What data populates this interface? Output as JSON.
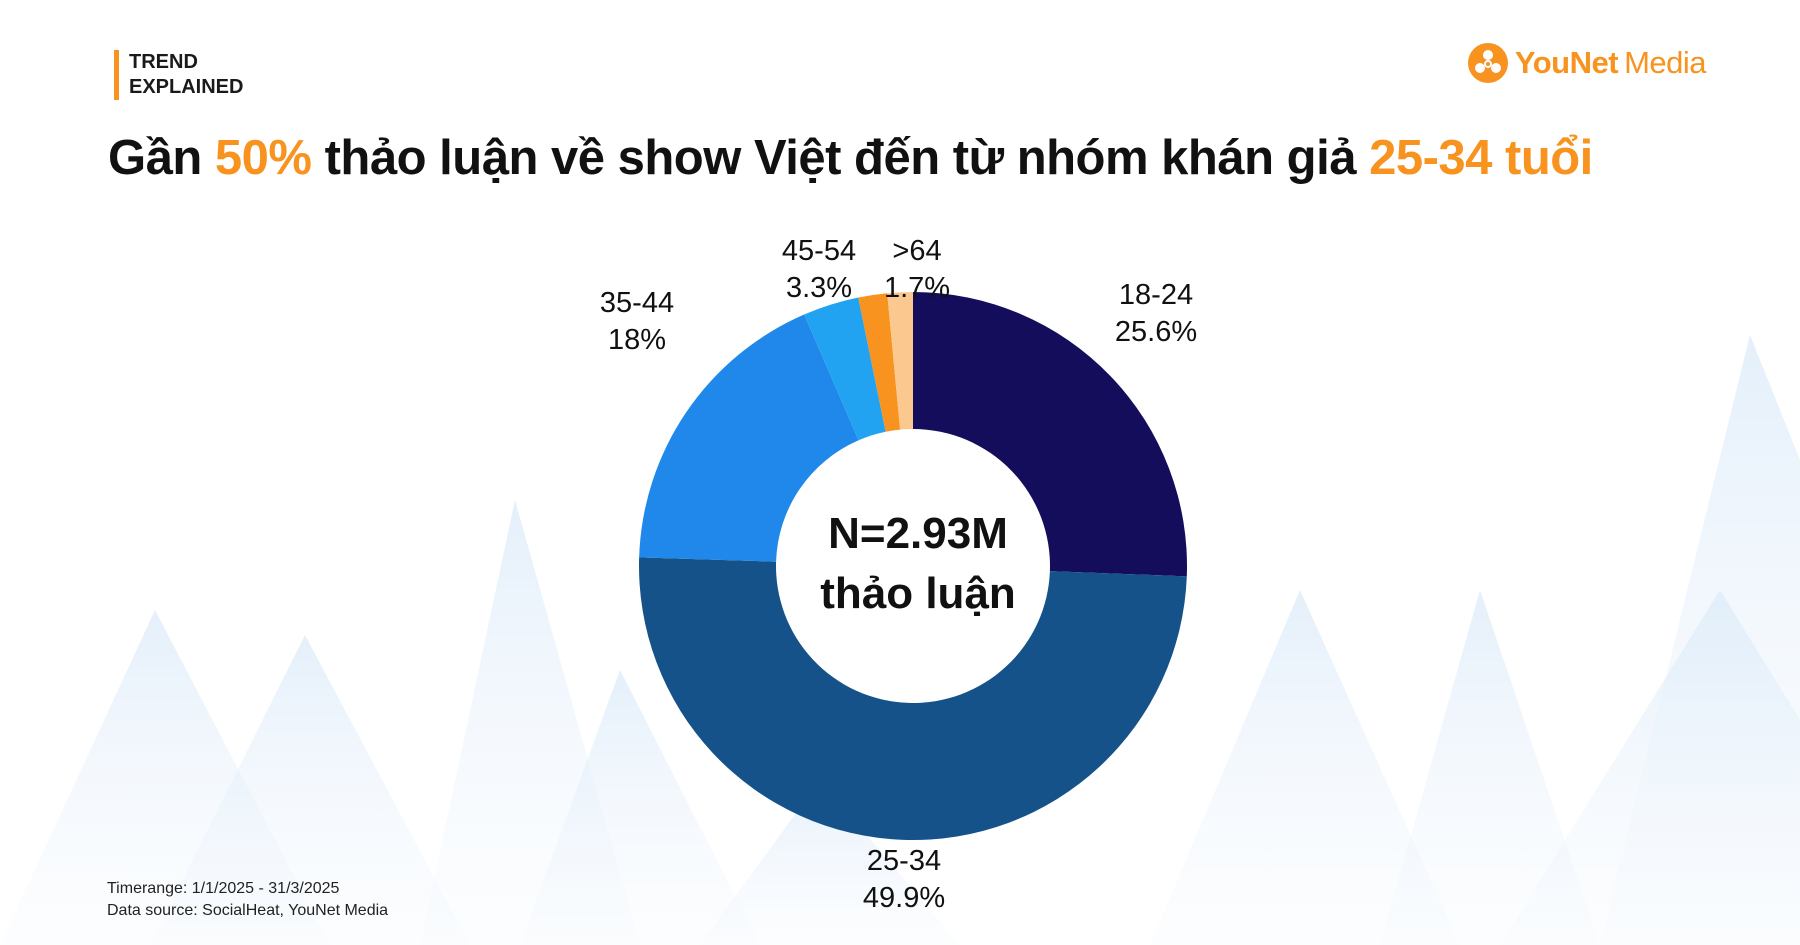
{
  "brand": {
    "line1": "TREND",
    "line2": "EXPLAINED"
  },
  "logo": {
    "part1": "YouNet",
    "part2": "Media"
  },
  "title": {
    "part1": "Gần ",
    "highlight1": "50%",
    "part2": " thảo luận về show Việt đến từ nhóm khán giả ",
    "highlight2": "25-34 tuổi"
  },
  "center_label": {
    "line1": "N=2.93M",
    "line2": "thảo luận"
  },
  "footer": {
    "timerange": "Timerange: 1/1/2025 - 31/3/2025",
    "source": "Data source: SocialHeat, YouNet Media"
  },
  "colors": {
    "accent": "#f7931e",
    "text": "#111111"
  },
  "chart_data": {
    "type": "pie",
    "donut": true,
    "categories": [
      "18-24",
      "25-34",
      "35-44",
      "45-54",
      ">64"
    ],
    "values": [
      25.6,
      49.9,
      18,
      3.3,
      1.7
    ],
    "value_labels": [
      "25.6%",
      "49.9%",
      "18%",
      "3.3%",
      "1.7%"
    ],
    "colors": [
      "#140d5c",
      "#155289",
      "#1f88ea",
      "#22a3f2",
      "#f7931e",
      "#fbc98f"
    ],
    "slice_categories": [
      "18-24",
      "25-34",
      "35-44",
      "45-54",
      ">64",
      ""
    ],
    "slice_values": [
      25.6,
      49.9,
      18,
      3.3,
      1.7,
      1.5
    ],
    "start": "12 o'clock",
    "direction": "clockwise"
  }
}
